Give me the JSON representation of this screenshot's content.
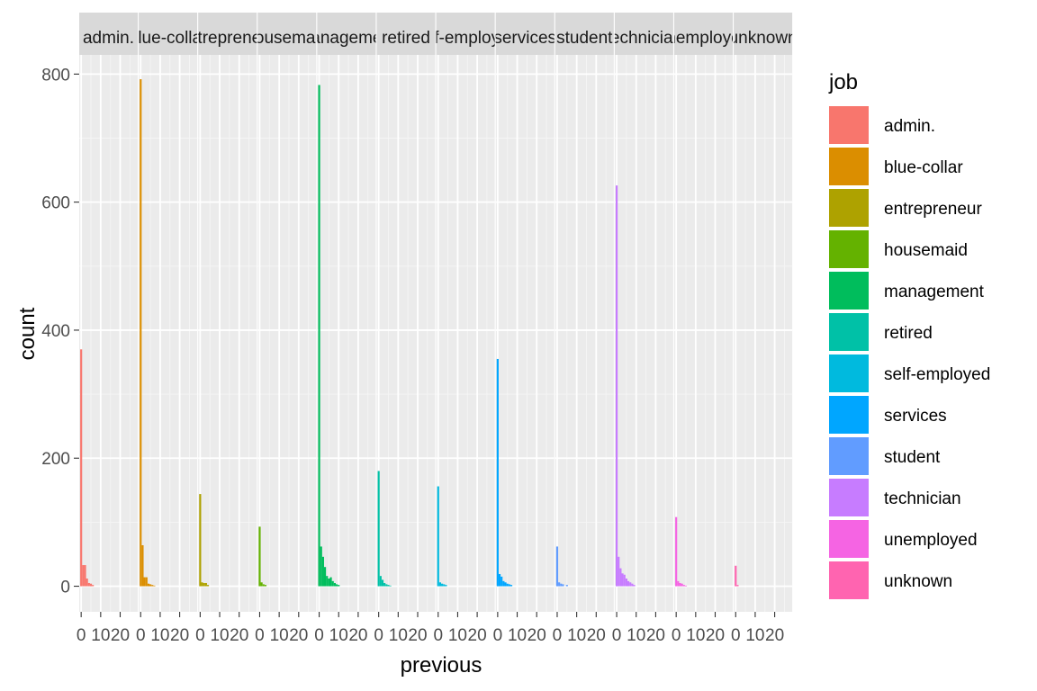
{
  "chart_data": {
    "type": "bar",
    "chart_kind": "faceted histogram",
    "xlabel": "previous",
    "ylabel": "count",
    "ylim": [
      -40,
      830
    ],
    "xlim": [
      -1,
      29
    ],
    "y_ticks": [
      0,
      200,
      400,
      600,
      800
    ],
    "x_ticks": [
      0,
      10,
      20
    ],
    "x_tick_labels": [
      "0",
      "10",
      "20"
    ],
    "grid": true,
    "legend_title": "job",
    "legend_position": "right",
    "facet_strip_labels": [
      "admin.",
      "blue-collar",
      "entrepreneur",
      "housemaid",
      "management",
      "retired",
      "self-employed",
      "services",
      "student",
      "technician",
      "unemployed",
      "unknown"
    ],
    "series": [
      {
        "name": "admin.",
        "color": "#F8766D",
        "x": [
          0,
          1,
          2,
          3,
          4,
          5,
          6
        ],
        "values": [
          370,
          33,
          33,
          12,
          5,
          4,
          2
        ]
      },
      {
        "name": "blue-collar",
        "color": "#DB8E00",
        "x": [
          0,
          1,
          2,
          3,
          4,
          5,
          6,
          7
        ],
        "values": [
          792,
          64,
          14,
          14,
          4,
          3,
          2,
          1
        ]
      },
      {
        "name": "entrepreneur",
        "color": "#AEA200",
        "x": [
          0,
          1,
          2,
          3,
          4
        ],
        "values": [
          144,
          6,
          5,
          5,
          2
        ]
      },
      {
        "name": "housemaid",
        "color": "#64B200",
        "x": [
          0,
          1,
          2,
          3
        ],
        "values": [
          93,
          6,
          3,
          2
        ]
      },
      {
        "name": "management",
        "color": "#00BD5C",
        "x": [
          0,
          1,
          2,
          3,
          4,
          5,
          6,
          7,
          8,
          9,
          10
        ],
        "values": [
          783,
          62,
          46,
          30,
          16,
          12,
          14,
          8,
          5,
          3,
          2
        ]
      },
      {
        "name": "retired",
        "color": "#00C1A7",
        "x": [
          0,
          1,
          2,
          3,
          4,
          5,
          6
        ],
        "values": [
          180,
          16,
          10,
          5,
          3,
          2,
          1
        ]
      },
      {
        "name": "self-employed",
        "color": "#00BADE",
        "x": [
          0,
          1,
          2,
          3,
          4
        ],
        "values": [
          156,
          6,
          4,
          3,
          2
        ]
      },
      {
        "name": "services",
        "color": "#00A6FF",
        "x": [
          0,
          1,
          2,
          3,
          4,
          5,
          6,
          7
        ],
        "values": [
          355,
          19,
          15,
          8,
          6,
          4,
          3,
          2
        ]
      },
      {
        "name": "student",
        "color": "#619CFF",
        "x": [
          0,
          1,
          2,
          3,
          5
        ],
        "values": [
          62,
          6,
          4,
          3,
          2
        ]
      },
      {
        "name": "technician",
        "color": "#C77CFF",
        "x": [
          0,
          1,
          2,
          3,
          4,
          5,
          6,
          7,
          8,
          9
        ],
        "values": [
          626,
          46,
          28,
          20,
          18,
          12,
          8,
          6,
          4,
          2
        ]
      },
      {
        "name": "unemployed",
        "color": "#F564E3",
        "x": [
          0,
          1,
          2,
          3,
          4,
          5
        ],
        "values": [
          108,
          8,
          5,
          4,
          2,
          1
        ]
      },
      {
        "name": "unknown",
        "color": "#FF64B0",
        "x": [
          0,
          1
        ],
        "values": [
          32,
          2
        ]
      }
    ]
  }
}
